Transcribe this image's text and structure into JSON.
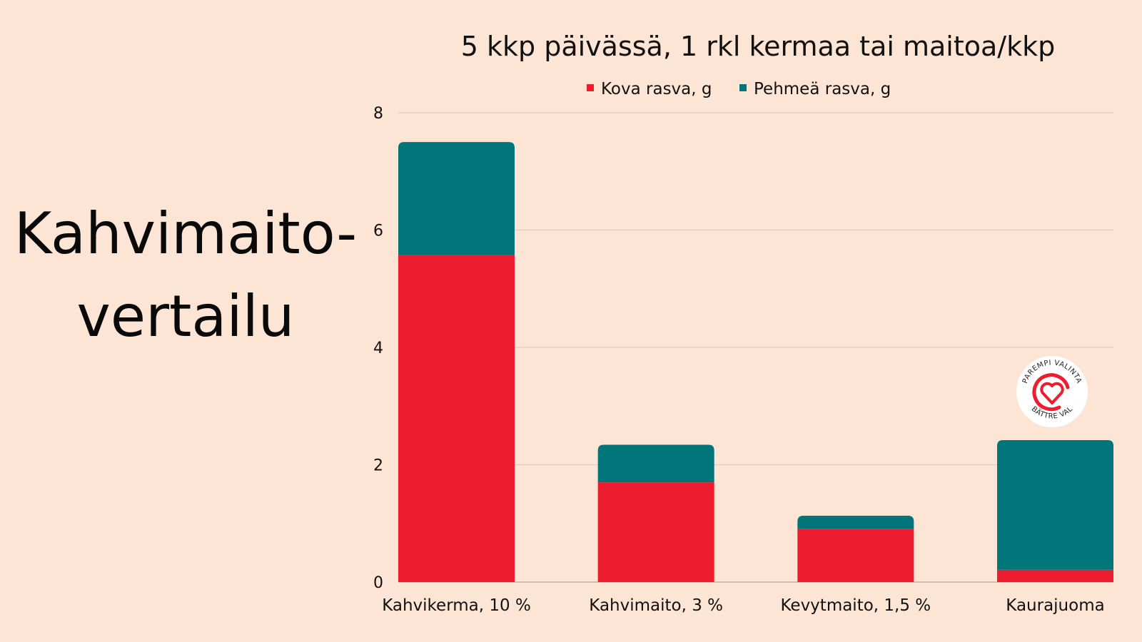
{
  "heading": {
    "line1": "Kahvimaito-",
    "line2": "vertailu"
  },
  "logo": {
    "text_top": "PAREMPI VALINTA",
    "text_bottom": "BÄTTRE VAL"
  },
  "colors": {
    "hard": "#ed1c2e",
    "soft": "#00757a",
    "background": "#fde5d5",
    "grid": "#e2cbbd"
  },
  "chart_data": {
    "type": "bar",
    "stacked": true,
    "title": "5 kkp päivässä, 1 rkl kermaa tai maitoa/kkp",
    "categories": [
      "Kahvikerma, 10 %",
      "Kahvimaito, 3 %",
      "Kevytmaito, 1,5 %",
      "Kaurajuoma"
    ],
    "series": [
      {
        "name": "Kova rasva, g",
        "values": [
          5.57,
          1.7,
          0.91,
          0.21
        ]
      },
      {
        "name": "Pehmeä rasva, g",
        "values": [
          1.93,
          0.64,
          0.22,
          2.21
        ]
      }
    ],
    "ylim": [
      0,
      8
    ],
    "yticks": [
      0,
      2,
      4,
      6,
      8
    ],
    "grid": true,
    "legend": "top",
    "xlabel": "",
    "ylabel": ""
  }
}
